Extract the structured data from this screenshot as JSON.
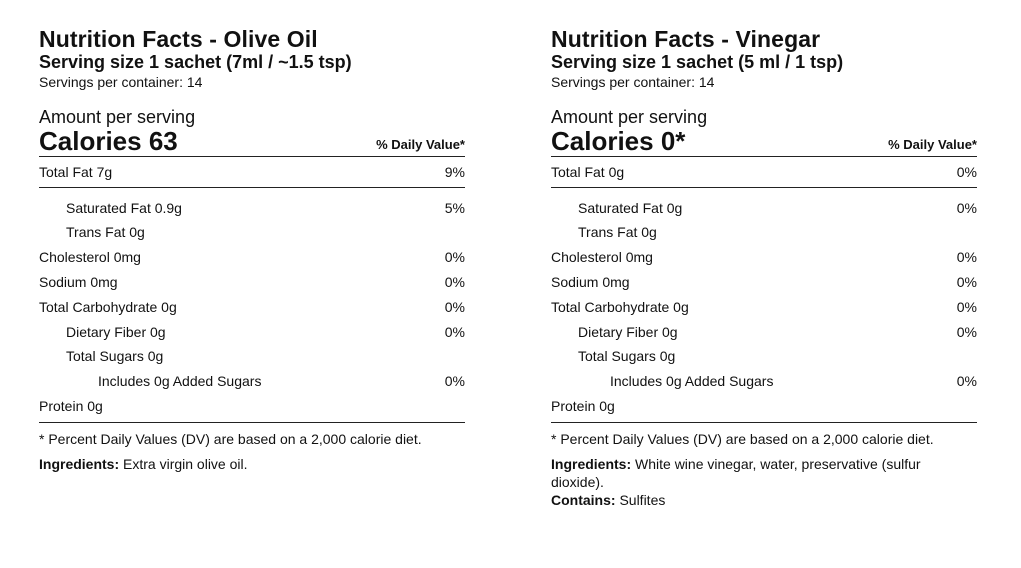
{
  "panels": [
    {
      "title": "Nutrition Facts - Olive Oil",
      "serving_size": "Serving size 1 sachet (7ml / ~1.5 tsp)",
      "servings_per_container": "Servings per container: 14",
      "amount_label": "Amount per serving",
      "calories": "Calories 63",
      "dv_header": "% Daily Value*",
      "rows": [
        {
          "label": "Total Fat 7g",
          "dv": "9%"
        },
        {
          "label": "Saturated Fat 0.9g",
          "dv": "5%"
        },
        {
          "label": "Trans Fat 0g",
          "dv": ""
        },
        {
          "label": "Cholesterol 0mg",
          "dv": "0%"
        },
        {
          "label": "Sodium 0mg",
          "dv": "0%"
        },
        {
          "label": "Total Carbohydrate 0g",
          "dv": "0%"
        },
        {
          "label": "Dietary Fiber 0g",
          "dv": "0%"
        },
        {
          "label": "Total Sugars 0g",
          "dv": ""
        },
        {
          "label": "Includes 0g Added Sugars",
          "dv": "0%"
        },
        {
          "label": "Protein 0g",
          "dv": ""
        }
      ],
      "footnote": "* Percent Daily Values (DV) are based on a 2,000 calorie diet.",
      "ingredients_label": "Ingredients:",
      "ingredients_text": " Extra virgin olive oil.",
      "contains_label": "",
      "contains_text": ""
    },
    {
      "title": "Nutrition Facts - Vinegar",
      "serving_size": "Serving size 1 sachet (5 ml / 1 tsp)",
      "servings_per_container": "Servings per container: 14",
      "amount_label": "Amount per serving",
      "calories": "Calories 0*",
      "dv_header": "% Daily Value*",
      "rows": [
        {
          "label": "Total Fat 0g",
          "dv": "0%"
        },
        {
          "label": "Saturated Fat 0g",
          "dv": "0%"
        },
        {
          "label": "Trans Fat 0g",
          "dv": ""
        },
        {
          "label": "Cholesterol 0mg",
          "dv": "0%"
        },
        {
          "label": "Sodium 0mg",
          "dv": "0%"
        },
        {
          "label": "Total Carbohydrate 0g",
          "dv": "0%"
        },
        {
          "label": "Dietary Fiber 0g",
          "dv": "0%"
        },
        {
          "label": "Total Sugars 0g",
          "dv": ""
        },
        {
          "label": "Includes 0g Added Sugars",
          "dv": "0%"
        },
        {
          "label": "Protein 0g",
          "dv": ""
        }
      ],
      "footnote": "* Percent Daily Values (DV) are based on a 2,000 calorie diet.",
      "ingredients_label": "Ingredients:",
      "ingredients_text": " White wine vinegar, water, preservative (sulfur dioxide).",
      "contains_label": "Contains:",
      "contains_text": " Sulfites"
    }
  ]
}
